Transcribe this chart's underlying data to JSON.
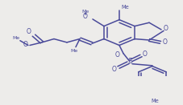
{
  "background_color": "#edecea",
  "line_color": "#4a4a9a",
  "line_width": 1.1,
  "figsize": [
    2.27,
    1.31
  ],
  "dpi": 100,
  "xlim": [
    0,
    227
  ],
  "ylim": [
    0,
    131
  ]
}
